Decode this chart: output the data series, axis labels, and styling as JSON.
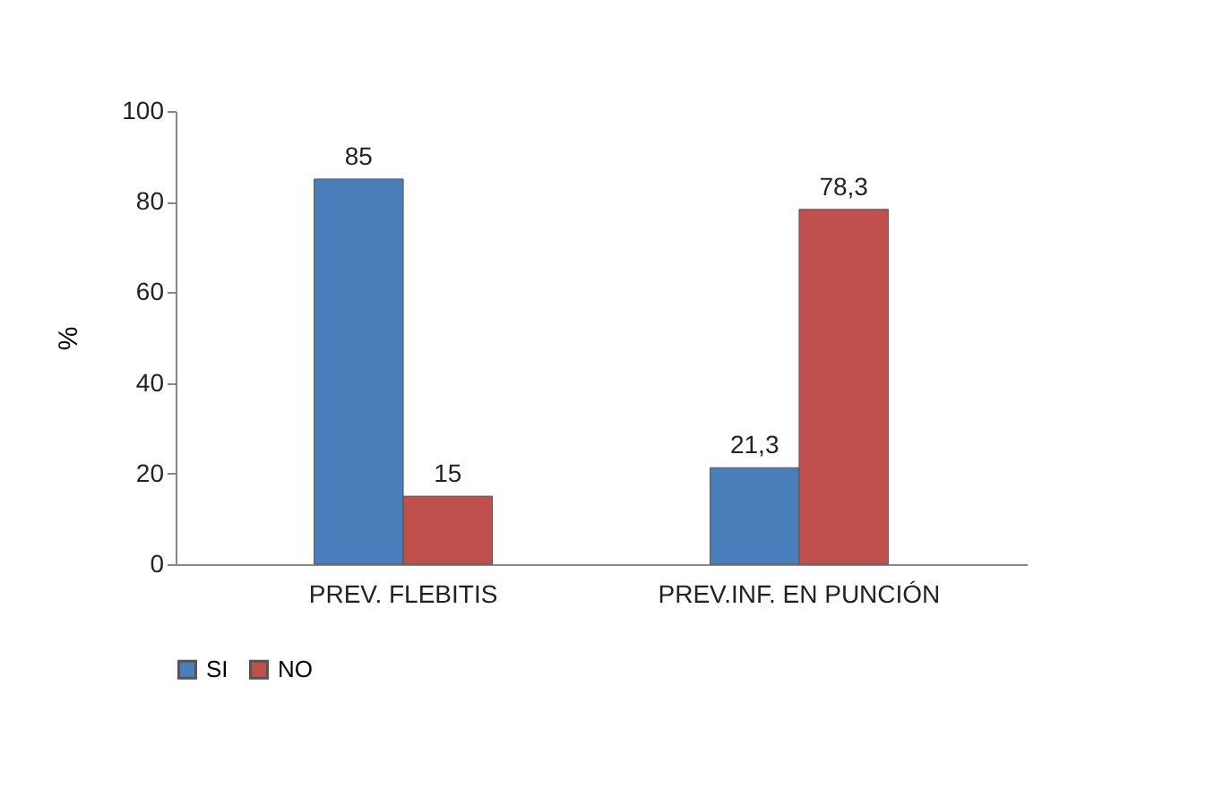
{
  "chart_data": {
    "type": "bar",
    "categories": [
      "PREV. FLEBITIS",
      "PREV.INF. EN PUNCIÓN"
    ],
    "ylabel": "%",
    "ylim": [
      0,
      100
    ],
    "yticks": [
      0,
      20,
      40,
      60,
      80,
      100
    ],
    "grid": false,
    "legend": "bottom",
    "series": [
      {
        "name": "SI",
        "color": "#4a7ebb",
        "values": [
          85,
          21.3
        ],
        "value_labels": [
          "85",
          "21,3"
        ]
      },
      {
        "name": "NO",
        "color": "#c0504d",
        "values": [
          15,
          78.3
        ],
        "value_labels": [
          "15",
          "78,3"
        ]
      }
    ]
  }
}
